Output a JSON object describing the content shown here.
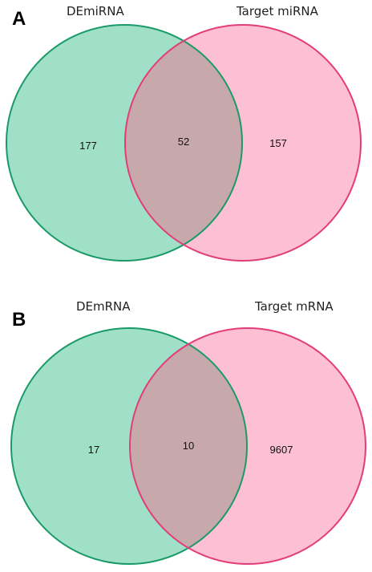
{
  "panels": [
    {
      "label": "A",
      "sets": [
        "DEmiRNA",
        "Target miRNA"
      ],
      "counts": {
        "left_only": "177",
        "overlap": "52",
        "right_only": "157"
      }
    },
    {
      "label": "B",
      "sets": [
        "DEmRNA",
        "Target mRNA"
      ],
      "counts": {
        "left_only": "17",
        "overlap": "10",
        "right_only": "9607"
      }
    }
  ],
  "colors": {
    "left_fill": "#a0dfc8",
    "left_stroke": "#1a9a68",
    "right_fill": "#fcbfd3",
    "right_stroke": "#e23d7a",
    "overlap_fill": "#c8a9ab"
  }
}
